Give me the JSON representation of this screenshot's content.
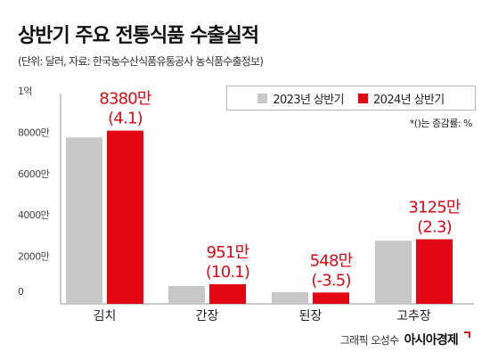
{
  "title": "상반기 주요 전통식품 수출실적",
  "source": "(단위: 달러, 자료: 한국농수산식품유통공사 농식품수출정보)",
  "note": "*()는 증감률: %",
  "credit": {
    "by": "그래픽 오성수",
    "logo": "아시아경제"
  },
  "colors": {
    "y2023": "#c8c8c8",
    "y2024": "#e30613",
    "axis": "#999999",
    "grid": "#e3e3e3"
  },
  "chart_data": {
    "type": "bar",
    "categories": [
      "김치",
      "간장",
      "된장",
      "고추장"
    ],
    "series": [
      {
        "name": "2023년 상반기",
        "values": [
          8050,
          865,
          568,
          3055
        ]
      },
      {
        "name": "2024년 상반기",
        "values": [
          8380,
          951,
          548,
          3125
        ]
      }
    ],
    "value_labels": [
      "8380만",
      "951만",
      "548만",
      "3125만"
    ],
    "change_labels": [
      "(4.1)",
      "(10.1)",
      "(-3.5)",
      "(2.3)"
    ],
    "yticks": [
      {
        "v": 0,
        "label": "0"
      },
      {
        "v": 2000,
        "label": "2000만"
      },
      {
        "v": 4000,
        "label": "4000만"
      },
      {
        "v": 6000,
        "label": "6000만"
      },
      {
        "v": 8000,
        "label": "8000만"
      },
      {
        "v": 10000,
        "label": "1억"
      }
    ],
    "ylim": [
      0,
      10000
    ],
    "unit_note": "만 달러",
    "legend_position": "top-right",
    "grid": false
  }
}
